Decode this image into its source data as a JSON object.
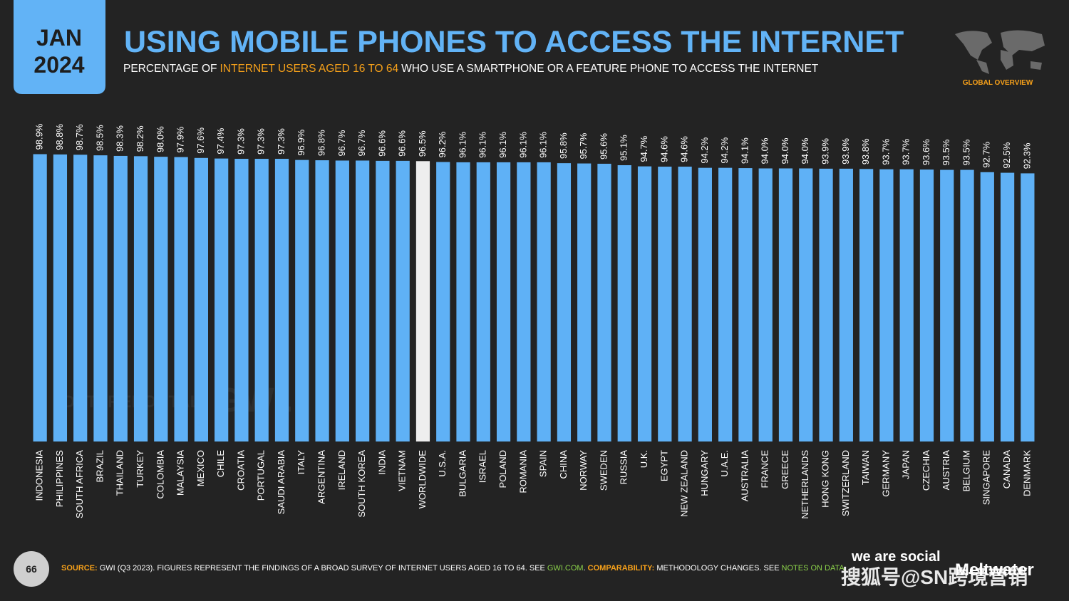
{
  "chart_data": {
    "type": "bar",
    "date_month": "JAN",
    "date_year": "2024",
    "title": "USING MOBILE PHONES TO ACCESS THE INTERNET",
    "subtitle": [
      "PERCENTAGE OF",
      "INTERNET USERS AGED 16 TO 64",
      "WHO USE A SMARTPHONE OR A FEATURE PHONE TO ACCESS THE INTERNET"
    ],
    "badge": "GLOBAL OVERVIEW",
    "page_number": "66",
    "source": [
      "SOURCE:",
      "GWI (Q3 2023). FIGURES REPRESENT THE FINDINGS OF A BROAD SURVEY OF INTERNET USERS AGED 16 TO 64. SEE",
      "GWI.COM",
      ".",
      "COMPARABILITY:",
      "METHODOLOGY CHANGES. SEE",
      "NOTES ON DATA",
      "."
    ],
    "watermarks": [
      "DATAREPORTAL",
      "GWI.",
      "we are social",
      "Meltwater",
      "搜狐号@SN跨境营销"
    ],
    "categories": [
      "INDONESIA",
      "PHILIPPINES",
      "SOUTH AFRICA",
      "BRAZIL",
      "THAILAND",
      "TURKEY",
      "COLOMBIA",
      "MALAYSIA",
      "MEXICO",
      "CHILE",
      "CROATIA",
      "PORTUGAL",
      "SAUDI ARABIA",
      "ITALY",
      "ARGENTINA",
      "IRELAND",
      "SOUTH KOREA",
      "INDIA",
      "VIETNAM",
      "WORLDWIDE",
      "U.S.A.",
      "BULGARIA",
      "ISRAEL",
      "POLAND",
      "ROMANIA",
      "SPAIN",
      "CHINA",
      "NORWAY",
      "SWEDEN",
      "RUSSIA",
      "U.K.",
      "EGYPT",
      "NEW ZEALAND",
      "HUNGARY",
      "U.A.E.",
      "AUSTRALIA",
      "FRANCE",
      "GREECE",
      "NETHERLANDS",
      "HONG KONG",
      "SWITZERLAND",
      "TAIWAN",
      "GERMANY",
      "JAPAN",
      "CZECHIA",
      "AUSTRIA",
      "BELGIUM",
      "SINGAPORE",
      "CANADA",
      "DENMARK"
    ],
    "values": [
      98.9,
      98.8,
      98.7,
      98.5,
      98.3,
      98.2,
      98.0,
      97.9,
      97.6,
      97.4,
      97.3,
      97.3,
      97.3,
      96.9,
      96.8,
      96.7,
      96.7,
      96.6,
      96.6,
      96.5,
      96.2,
      96.1,
      96.1,
      96.1,
      96.1,
      96.1,
      95.8,
      95.7,
      95.6,
      95.1,
      94.7,
      94.6,
      94.6,
      94.2,
      94.2,
      94.1,
      94.0,
      94.0,
      94.0,
      93.9,
      93.9,
      93.8,
      93.7,
      93.7,
      93.6,
      93.5,
      93.5,
      92.7,
      92.5,
      92.3
    ],
    "value_labels": [
      "98.9%",
      "98.8%",
      "98.7%",
      "98.5%",
      "98.3%",
      "98.2%",
      "98.0%",
      "97.9%",
      "97.6%",
      "97.4%",
      "97.3%",
      "97.3%",
      "97.3%",
      "96.9%",
      "96.8%",
      "96.7%",
      "96.7%",
      "96.6%",
      "96.6%",
      "96.5%",
      "96.2%",
      "96.1%",
      "96.1%",
      "96.1%",
      "96.1%",
      "96.1%",
      "95.8%",
      "95.7%",
      "95.6%",
      "95.1%",
      "94.7%",
      "94.6%",
      "94.6%",
      "94.2%",
      "94.2%",
      "94.1%",
      "94.0%",
      "94.0%",
      "94.0%",
      "93.9%",
      "93.9%",
      "93.8%",
      "93.7%",
      "93.7%",
      "93.6%",
      "93.5%",
      "93.5%",
      "92.7%",
      "92.5%",
      "92.3%"
    ],
    "colors": [
      "#5fb1f6",
      "#5fb1f6",
      "#5fb1f6",
      "#5fb1f6",
      "#5fb1f6",
      "#5fb1f6",
      "#5fb1f6",
      "#5fb1f6",
      "#5fb1f6",
      "#5fb1f6",
      "#5fb1f6",
      "#5fb1f6",
      "#5fb1f6",
      "#5fb1f6",
      "#5fb1f6",
      "#5fb1f6",
      "#5fb1f6",
      "#5fb1f6",
      "#5fb1f6",
      "#eeeeee",
      "#5fb1f6",
      "#5fb1f6",
      "#5fb1f6",
      "#5fb1f6",
      "#5fb1f6",
      "#5fb1f6",
      "#5fb1f6",
      "#5fb1f6",
      "#5fb1f6",
      "#5fb1f6",
      "#5fb1f6",
      "#5fb1f6",
      "#5fb1f6",
      "#5fb1f6",
      "#5fb1f6",
      "#5fb1f6",
      "#5fb1f6",
      "#5fb1f6",
      "#5fb1f6",
      "#5fb1f6",
      "#5fb1f6",
      "#5fb1f6",
      "#5fb1f6",
      "#5fb1f6",
      "#5fb1f6",
      "#5fb1f6",
      "#5fb1f6",
      "#5fb1f6",
      "#5fb1f6",
      "#5fb1f6"
    ],
    "ylim": [
      0,
      100
    ],
    "grid": false
  }
}
